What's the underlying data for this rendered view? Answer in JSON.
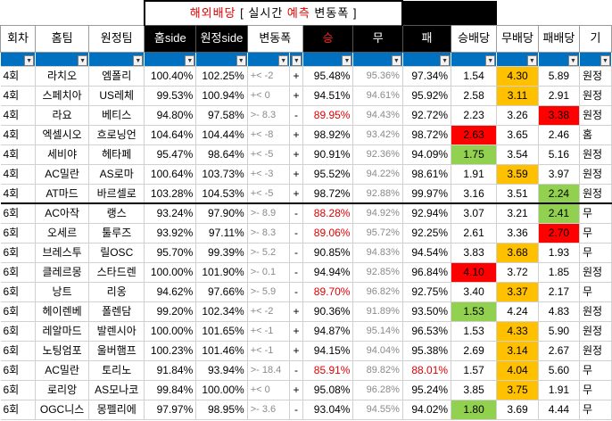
{
  "banner": {
    "pre": "해외배당",
    "mid": " [ 실시간 ",
    "accent": "예측",
    "post": " 변동폭 ]"
  },
  "headers": [
    "회차",
    "홈팀",
    "원정팀",
    "홈side",
    "원정side",
    "변동폭",
    "승",
    "무",
    "패",
    "승배당",
    "무배당",
    "패배당",
    "기"
  ],
  "colors": {
    "orange": "#ffc000",
    "red": "#ff0000",
    "green": "#92d050",
    "filter_blue": "#0070c0",
    "red_text": "#e00000"
  },
  "rows": [
    {
      "round": "4회",
      "home": "라치오",
      "away": "엠폴리",
      "home_side": "100.40%",
      "away_side": "102.25%",
      "change": "+<  -2",
      "sign": "+",
      "win": "95.48%",
      "draw": "95.36%",
      "lose": "97.34%",
      "odds_win": "1.54",
      "odds_draw": "4.30",
      "odds_lose": "5.89",
      "note": "원정"
    },
    {
      "round": "4회",
      "home": "스페치아",
      "away": "US레체",
      "home_side": "99.53%",
      "away_side": "100.94%",
      "change": "+<  0",
      "sign": "+",
      "win": "94.51%",
      "draw": "94.61%",
      "lose": "95.92%",
      "odds_win": "2.58",
      "odds_draw": "3.11",
      "odds_lose": "2.91",
      "note": "원정"
    },
    {
      "round": "4회",
      "home": "라요",
      "away": "베티스",
      "home_side": "94.80%",
      "away_side": "97.58%",
      "change": ">-  8.3",
      "sign": "-",
      "win": "89.95%",
      "draw": "94.43%",
      "lose": "92.72%",
      "odds_win": "2.23",
      "odds_draw": "3.26",
      "odds_lose": "3.38",
      "note": "원정"
    },
    {
      "round": "4회",
      "home": "엑셀시오",
      "away": "흐로닝언",
      "home_side": "104.64%",
      "away_side": "104.44%",
      "change": "+<  -8",
      "sign": "+",
      "win": "98.92%",
      "draw": "93.42%",
      "lose": "98.72%",
      "odds_win": "2.63",
      "odds_draw": "3.65",
      "odds_lose": "2.46",
      "note": "홈"
    },
    {
      "round": "4회",
      "home": "세비야",
      "away": "헤타페",
      "home_side": "95.47%",
      "away_side": "98.64%",
      "change": "+<  -5",
      "sign": "+",
      "win": "90.91%",
      "draw": "92.36%",
      "lose": "94.09%",
      "odds_win": "1.75",
      "odds_draw": "3.54",
      "odds_lose": "5.16",
      "note": "원정"
    },
    {
      "round": "4회",
      "home": "AC밀란",
      "away": "AS로마",
      "home_side": "100.64%",
      "away_side": "103.73%",
      "change": "+<  -3",
      "sign": "+",
      "win": "95.52%",
      "draw": "94.22%",
      "lose": "98.61%",
      "odds_win": "1.91",
      "odds_draw": "3.59",
      "odds_lose": "3.97",
      "note": "원정"
    },
    {
      "round": "4회",
      "home": "AT마드",
      "away": "바르셀로",
      "home_side": "103.28%",
      "away_side": "104.53%",
      "change": "+<  -5",
      "sign": "+",
      "win": "98.72%",
      "draw": "92.88%",
      "lose": "99.97%",
      "odds_win": "3.16",
      "odds_draw": "3.51",
      "odds_lose": "2.24",
      "note": "원정"
    },
    {
      "round": "6회",
      "home": "AC아작",
      "away": "랭스",
      "home_side": "93.24%",
      "away_side": "97.90%",
      "change": ">-  8.9",
      "sign": "-",
      "win": "88.28%",
      "draw": "94.92%",
      "lose": "92.94%",
      "odds_win": "3.07",
      "odds_draw": "3.21",
      "odds_lose": "2.41",
      "note": "무"
    },
    {
      "round": "6회",
      "home": "오세르",
      "away": "툴루즈",
      "home_side": "93.92%",
      "away_side": "97.11%",
      "change": ">-  8.3",
      "sign": "-",
      "win": "89.06%",
      "draw": "95.72%",
      "lose": "92.25%",
      "odds_win": "2.61",
      "odds_draw": "3.36",
      "odds_lose": "2.70",
      "note": "무"
    },
    {
      "round": "6회",
      "home": "브레스투",
      "away": "릴OSC",
      "home_side": "95.70%",
      "away_side": "99.39%",
      "change": ">-  5.2",
      "sign": "-",
      "win": "90.85%",
      "draw": "94.83%",
      "lose": "94.54%",
      "odds_win": "3.83",
      "odds_draw": "3.68",
      "odds_lose": "1.93",
      "note": "무"
    },
    {
      "round": "6회",
      "home": "클레르몽",
      "away": "스타드렌",
      "home_side": "100.00%",
      "away_side": "101.90%",
      "change": ">-  0.1",
      "sign": "-",
      "win": "94.94%",
      "draw": "92.85%",
      "lose": "96.84%",
      "odds_win": "4.10",
      "odds_draw": "3.72",
      "odds_lose": "1.85",
      "note": "원정"
    },
    {
      "round": "6회",
      "home": "낭트",
      "away": "리옹",
      "home_side": "94.62%",
      "away_side": "97.66%",
      "change": ">-  5.9",
      "sign": "-",
      "win": "89.70%",
      "draw": "96.82%",
      "lose": "92.75%",
      "odds_win": "3.40",
      "odds_draw": "3.37",
      "odds_lose": "2.17",
      "note": "무"
    },
    {
      "round": "6회",
      "home": "헤이렌베",
      "away": "폴렌담",
      "home_side": "99.20%",
      "away_side": "102.34%",
      "change": "+<  -2",
      "sign": "+",
      "win": "90.36%",
      "draw": "91.89%",
      "lose": "93.50%",
      "odds_win": "1.53",
      "odds_draw": "4.24",
      "odds_lose": "4.83",
      "note": "원정"
    },
    {
      "round": "6회",
      "home": "레알마드",
      "away": "발렌시아",
      "home_side": "100.00%",
      "away_side": "101.65%",
      "change": "+<  -1",
      "sign": "+",
      "win": "94.87%",
      "draw": "95.14%",
      "lose": "96.53%",
      "odds_win": "1.53",
      "odds_draw": "4.33",
      "odds_lose": "5.90",
      "note": "원정"
    },
    {
      "round": "6회",
      "home": "노팅엄포",
      "away": "울버햄프",
      "home_side": "100.23%",
      "away_side": "101.46%",
      "change": "+<  -1",
      "sign": "+",
      "win": "94.15%",
      "draw": "94.04%",
      "lose": "95.38%",
      "odds_win": "2.69",
      "odds_draw": "3.14",
      "odds_lose": "2.67",
      "note": "원정"
    },
    {
      "round": "6회",
      "home": "AC밀란",
      "away": "토리노",
      "home_side": "91.84%",
      "away_side": "93.94%",
      "change": ">-  18.4",
      "sign": "-",
      "win": "85.91%",
      "draw": "89.82%",
      "lose": "88.01%",
      "odds_win": "1.57",
      "odds_draw": "4.04",
      "odds_lose": "5.60",
      "note": "무"
    },
    {
      "round": "6회",
      "home": "로리앙",
      "away": "AS모나코",
      "home_side": "99.84%",
      "away_side": "100.00%",
      "change": "+<  0",
      "sign": "+",
      "win": "95.08%",
      "draw": "96.28%",
      "lose": "95.24%",
      "odds_win": "3.85",
      "odds_draw": "3.75",
      "odds_lose": "1.91",
      "note": "무"
    },
    {
      "round": "6회",
      "home": "OGC니스",
      "away": "몽펠리에",
      "home_side": "97.97%",
      "away_side": "98.95%",
      "change": ">-  3.6",
      "sign": "-",
      "win": "93.04%",
      "draw": "94.55%",
      "lose": "94.02%",
      "odds_win": "1.80",
      "odds_draw": "3.69",
      "odds_lose": "4.44",
      "note": "무"
    }
  ]
}
